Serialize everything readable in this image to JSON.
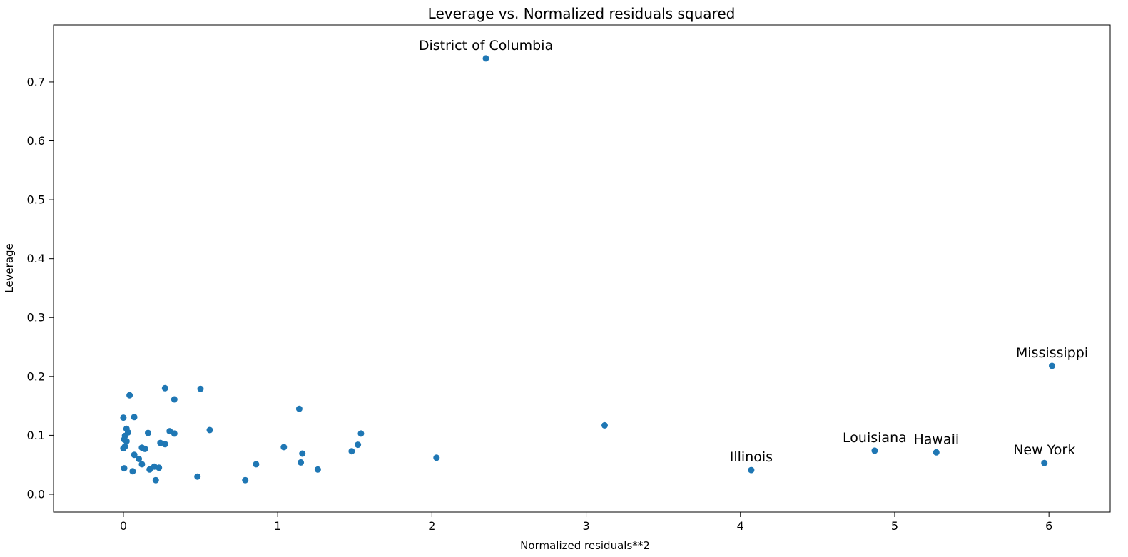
{
  "figure": {
    "title": "Leverage vs. Normalized residuals squared",
    "xlabel": "Normalized residuals**2",
    "ylabel": "Leverage"
  },
  "chart_data": {
    "type": "scatter",
    "title": "Leverage vs. Normalized residuals squared",
    "xlabel": "Normalized residuals**2",
    "ylabel": "Leverage",
    "xlim": [
      -0.453,
      6.397
    ],
    "ylim": [
      -0.0303,
      0.7968
    ],
    "x_ticks": [
      0,
      1,
      2,
      3,
      4,
      5,
      6
    ],
    "y_ticks": [
      0.0,
      0.1,
      0.2,
      0.3,
      0.4,
      0.5,
      0.6,
      0.7
    ],
    "grid": false,
    "legend": null,
    "marker_color": "#1f77b4",
    "marker_radius_px": 4.5,
    "points": [
      {
        "x": 2.35,
        "y": 0.74,
        "label": "District of Columbia"
      },
      {
        "x": 6.02,
        "y": 0.218,
        "label": "Mississippi"
      },
      {
        "x": 5.97,
        "y": 0.053,
        "label": "New York"
      },
      {
        "x": 5.27,
        "y": 0.071,
        "label": "Hawaii"
      },
      {
        "x": 4.87,
        "y": 0.074,
        "label": "Louisiana"
      },
      {
        "x": 4.07,
        "y": 0.041,
        "label": "Illinois"
      },
      {
        "x": 3.12,
        "y": 0.117
      },
      {
        "x": 2.03,
        "y": 0.062
      },
      {
        "x": 1.54,
        "y": 0.103
      },
      {
        "x": 1.52,
        "y": 0.084
      },
      {
        "x": 1.48,
        "y": 0.073
      },
      {
        "x": 1.26,
        "y": 0.042
      },
      {
        "x": 1.16,
        "y": 0.069
      },
      {
        "x": 1.15,
        "y": 0.054
      },
      {
        "x": 1.14,
        "y": 0.145
      },
      {
        "x": 1.04,
        "y": 0.08
      },
      {
        "x": 0.86,
        "y": 0.051
      },
      {
        "x": 0.79,
        "y": 0.024
      },
      {
        "x": 0.56,
        "y": 0.109
      },
      {
        "x": 0.5,
        "y": 0.179
      },
      {
        "x": 0.48,
        "y": 0.03
      },
      {
        "x": 0.33,
        "y": 0.161
      },
      {
        "x": 0.27,
        "y": 0.18
      },
      {
        "x": 0.3,
        "y": 0.107
      },
      {
        "x": 0.33,
        "y": 0.103
      },
      {
        "x": 0.24,
        "y": 0.087
      },
      {
        "x": 0.27,
        "y": 0.085
      },
      {
        "x": 0.23,
        "y": 0.045
      },
      {
        "x": 0.21,
        "y": 0.024
      },
      {
        "x": 0.2,
        "y": 0.047
      },
      {
        "x": 0.17,
        "y": 0.042
      },
      {
        "x": 0.16,
        "y": 0.104
      },
      {
        "x": 0.12,
        "y": 0.079
      },
      {
        "x": 0.14,
        "y": 0.077
      },
      {
        "x": 0.12,
        "y": 0.051
      },
      {
        "x": 0.1,
        "y": 0.06
      },
      {
        "x": 0.07,
        "y": 0.067
      },
      {
        "x": 0.06,
        "y": 0.039
      },
      {
        "x": 0.04,
        "y": 0.168
      },
      {
        "x": 0.07,
        "y": 0.131
      },
      {
        "x": 0.0,
        "y": 0.13
      },
      {
        "x": 0.02,
        "y": 0.111
      },
      {
        "x": 0.03,
        "y": 0.105
      },
      {
        "x": 0.01,
        "y": 0.099
      },
      {
        "x": 0.005,
        "y": 0.093
      },
      {
        "x": 0.02,
        "y": 0.09
      },
      {
        "x": 0.01,
        "y": 0.081
      },
      {
        "x": 0.0,
        "y": 0.078
      },
      {
        "x": 0.005,
        "y": 0.044
      }
    ]
  }
}
